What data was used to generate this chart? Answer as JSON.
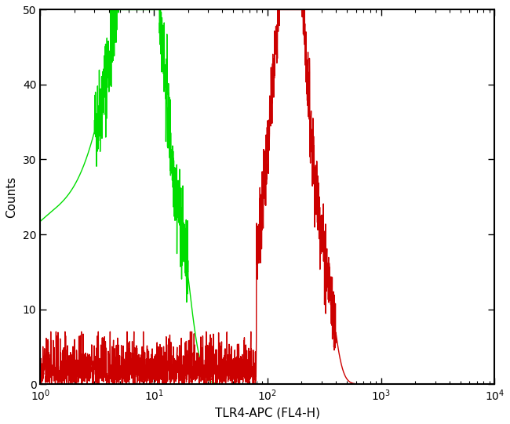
{
  "xlabel": "TLR4-APC (FL4-H)",
  "ylabel": "Counts",
  "xlim_log": [
    1,
    10000
  ],
  "ylim": [
    0,
    50
  ],
  "yticks": [
    0,
    10,
    20,
    30,
    40,
    50
  ],
  "background_color": "#ffffff",
  "line_color_green": "#00dd00",
  "line_color_red": "#cc0000",
  "linewidth": 1.0,
  "figsize": [
    6.5,
    5.41
  ],
  "dpi": 100
}
